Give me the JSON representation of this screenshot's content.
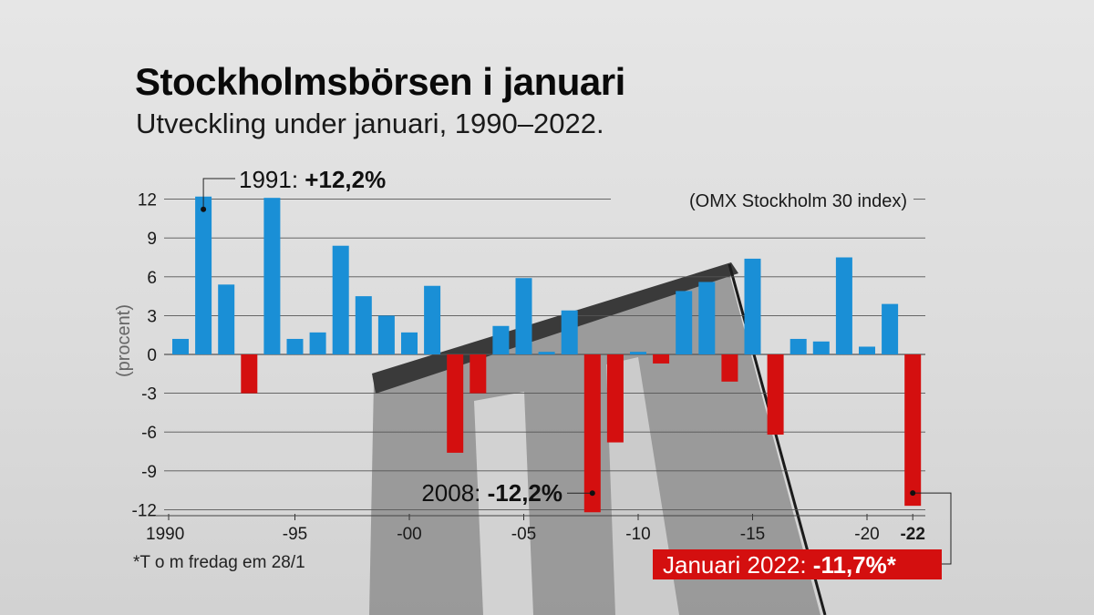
{
  "title": "Stockholmsbörsen i januari",
  "subtitle": "Utveckling under januari, 1990–2022.",
  "footnote": "*T o m fredag em 28/1",
  "colors": {
    "positive": "#1a8fd6",
    "negative": "#d40f0f",
    "highlight_bg": "#d40f0f"
  },
  "chart_data": {
    "type": "bar",
    "series_label": "(OMX Stockholm 30 index)",
    "ylabel": "(procent)",
    "ylim": [
      -12,
      12
    ],
    "yticks": [
      12,
      9,
      6,
      3,
      0,
      -3,
      -6,
      -9,
      -12
    ],
    "xlim": [
      1990,
      2022
    ],
    "xticks": [
      {
        "year": 1990,
        "label": "1990"
      },
      {
        "year": 1995,
        "label": "-95"
      },
      {
        "year": 2000,
        "label": "-00"
      },
      {
        "year": 2005,
        "label": "-05"
      },
      {
        "year": 2010,
        "label": "-10"
      },
      {
        "year": 2015,
        "label": "-15"
      },
      {
        "year": 2020,
        "label": "-20"
      },
      {
        "year": 2022,
        "label": "-22",
        "bold": true
      }
    ],
    "categories": [
      1990,
      1991,
      1992,
      1993,
      1994,
      1995,
      1996,
      1997,
      1998,
      1999,
      2000,
      2001,
      2002,
      2003,
      2004,
      2005,
      2006,
      2007,
      2008,
      2009,
      2010,
      2011,
      2012,
      2013,
      2014,
      2015,
      2016,
      2017,
      2018,
      2019,
      2020,
      2021,
      2022
    ],
    "values": [
      1.2,
      12.2,
      5.4,
      -3.0,
      12.1,
      1.2,
      1.7,
      8.4,
      4.5,
      3.0,
      1.7,
      5.3,
      -7.6,
      -3.0,
      2.2,
      5.9,
      0.2,
      3.4,
      -12.2,
      -6.8,
      0.2,
      -0.7,
      4.9,
      5.6,
      -2.1,
      7.4,
      -6.2,
      1.2,
      1.0,
      7.5,
      0.6,
      3.9,
      -11.7
    ],
    "annotations": [
      {
        "year": 1991,
        "prefix": "1991: ",
        "value_text": "+12,2%"
      },
      {
        "year": 2008,
        "prefix": "2008: ",
        "value_text": "-12,2%"
      },
      {
        "year": 2022,
        "prefix": "Januari 2022: ",
        "value_text": "-11,7%*"
      }
    ]
  }
}
